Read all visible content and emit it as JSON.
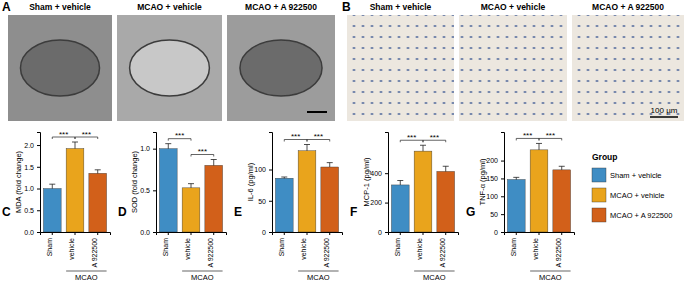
{
  "image_panels": [
    {
      "label": "A",
      "titles": [
        "Sham + vehicle",
        "MCAO + vehicle",
        "MCAO + A 922500"
      ]
    },
    {
      "label": "B",
      "titles": [
        "Sham + vehicle",
        "MCAO + vehicle",
        "MCAO + A 922500"
      ],
      "scale_bar": "100 µm"
    }
  ],
  "shared_legend": {
    "title": "Group",
    "names": [
      "Sham + vehicle",
      "MCAO + vehicle",
      "MCAO + A 922500"
    ],
    "colors": [
      "#3f8dc4",
      "#e9a41c",
      "#d2601a"
    ]
  },
  "chart_data": [
    {
      "type": "bar",
      "title": "C",
      "y_label": "MDA (fold change)",
      "categories": [
        "Sham",
        "vehicle",
        "A 922500"
      ],
      "values": [
        1.0,
        1.92,
        1.35
      ],
      "errors": [
        0.1,
        0.15,
        0.08
      ],
      "colors": [
        "#3f8dc4",
        "#e9a41c",
        "#d2601a"
      ],
      "ylim": [
        0,
        2.3
      ],
      "yticks": [
        {
          "value": 0,
          "label": "0.0"
        },
        {
          "value": 0.5,
          "label": "0.5"
        },
        {
          "value": 1,
          "label": "1.0"
        },
        {
          "value": 1.5,
          "label": "1.5"
        },
        {
          "value": 2,
          "label": "2.0"
        }
      ],
      "category_group": {
        "label": "MCAO",
        "categories": [
          "vehicle",
          "A 922500"
        ]
      },
      "annotations": [
        {
          "text": "***",
          "between": [
            "Sham",
            "vehicle"
          ]
        },
        {
          "text": "***",
          "between": [
            "vehicle",
            "A 922500"
          ]
        }
      ]
    },
    {
      "type": "bar",
      "title": "D",
      "y_label": "SOD (fold change)",
      "categories": [
        "Sham",
        "vehicle",
        "A 922500"
      ],
      "values": [
        1.0,
        0.53,
        0.8
      ],
      "errors": [
        0.06,
        0.05,
        0.07
      ],
      "colors": [
        "#3f8dc4",
        "#e9a41c",
        "#d2601a"
      ],
      "ylim": [
        0,
        1.2
      ],
      "yticks": [
        {
          "value": 0,
          "label": "0.0"
        },
        {
          "value": 0.5,
          "label": "0.5"
        },
        {
          "value": 1,
          "label": "1.0"
        }
      ],
      "category_group": {
        "label": "MCAO",
        "categories": [
          "vehicle",
          "A 922500"
        ]
      },
      "annotations": [
        {
          "text": "***",
          "between": [
            "Sham",
            "vehicle"
          ]
        },
        {
          "text": "***",
          "between": [
            "vehicle",
            "A 922500"
          ]
        }
      ]
    },
    {
      "type": "bar",
      "title": "E",
      "y_label": "IL-6 (pg/ml)",
      "categories": [
        "Sham",
        "vehicle",
        "A 922500"
      ],
      "values": [
        86,
        130,
        104
      ],
      "errors": [
        2,
        10,
        7
      ],
      "colors": [
        "#3f8dc4",
        "#e9a41c",
        "#d2601a"
      ],
      "ylim": [
        0,
        160
      ],
      "yticks": [
        0,
        50,
        100
      ],
      "category_group": {
        "label": "MCAO",
        "categories": [
          "vehicle",
          "A 922500"
        ]
      },
      "annotations": [
        {
          "text": "***",
          "between": [
            "Sham",
            "vehicle"
          ]
        },
        {
          "text": "***",
          "between": [
            "vehicle",
            "A 922500"
          ]
        }
      ]
    },
    {
      "type": "bar",
      "title": "F",
      "y_label": "MCP-1 (pg/ml)",
      "categories": [
        "Sham",
        "vehicle",
        "A 922500"
      ],
      "values": [
        320,
        550,
        412
      ],
      "errors": [
        30,
        40,
        35
      ],
      "colors": [
        "#3f8dc4",
        "#e9a41c",
        "#d2601a"
      ],
      "ylim": [
        0,
        680
      ],
      "yticks": [
        0,
        200,
        400
      ],
      "category_group": {
        "label": "MCAO",
        "categories": [
          "vehicle",
          "A 922500"
        ]
      },
      "annotations": [
        {
          "text": "***",
          "between": [
            "Sham",
            "vehicle"
          ]
        },
        {
          "text": "***",
          "between": [
            "vehicle",
            "A 922500"
          ]
        }
      ]
    },
    {
      "type": "bar",
      "title": "G",
      "y_label": "TNF-α (pg/ml)",
      "categories": [
        "Sham",
        "vehicle",
        "A 922500"
      ],
      "values": [
        147,
        230,
        174
      ],
      "errors": [
        6,
        18,
        10
      ],
      "colors": [
        "#3f8dc4",
        "#e9a41c",
        "#d2601a"
      ],
      "ylim": [
        0,
        280
      ],
      "yticks": [
        0,
        50,
        100,
        150,
        200
      ],
      "category_group": {
        "label": "MCAO",
        "categories": [
          "vehicle",
          "A 922500"
        ]
      },
      "annotations": [
        {
          "text": "***",
          "between": [
            "Sham",
            "vehicle"
          ]
        },
        {
          "text": "***",
          "between": [
            "vehicle",
            "A 922500"
          ]
        }
      ]
    }
  ]
}
